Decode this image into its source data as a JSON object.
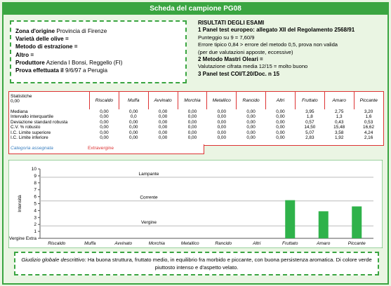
{
  "header": {
    "title": "Scheda del campione PG08"
  },
  "info": [
    {
      "label": "Zona d'origine",
      "value": "Provincia di Firenze"
    },
    {
      "label": "Varietà delle olive =",
      "value": ""
    },
    {
      "label": "Metodo di estrazione =",
      "value": ""
    },
    {
      "label": "Altro =",
      "value": ""
    },
    {
      "label": "Produttore",
      "value": "Azienda I Bonsi, Reggello (FI)"
    },
    {
      "label": "Prova effettuata il",
      "value": "9/6/97 a Perugia"
    }
  ],
  "results": {
    "title": "RISULTATI DEGLI ESAMI",
    "sections": [
      {
        "heading": "1 Panel test europeo: allegato XII del Regolamento 2568/91",
        "lines": [
          "Punteggio su 9 = 7,60/9",
          "Errore tipico 0,84 > errore del metodo 0,5, prova non valida",
          "(per due valutazioni apposte, eccessive)"
        ]
      },
      {
        "heading": "2 Metodo Mastri Oleari =",
        "lines": [
          "Valutazione cifrata media 12/15 = molto buono"
        ]
      },
      {
        "heading": "3 Panel test COI/T.20/Doc. n 15",
        "lines": []
      }
    ]
  },
  "table": {
    "corner": [
      "Statistiche",
      "0,00"
    ],
    "columns": [
      "Riscaldo",
      "Muffa",
      "Avvinato",
      "Morchia",
      "Metallico",
      "Rancido",
      "Altri",
      "Fruttato",
      "Amaro",
      "Piccante"
    ],
    "rows": [
      {
        "label": "Mediana",
        "cells": [
          "0,00",
          "0,00",
          "0,00",
          "0,00",
          "0,00",
          "0,00",
          "0,00",
          "3,95",
          "2,75",
          "3,20"
        ]
      },
      {
        "label": "Intervallo interquartile",
        "cells": [
          "0,00",
          "0,0",
          "0,00",
          "0,00",
          "0,00",
          "0,00",
          "0,00",
          "1,8",
          "1,3",
          "1,6"
        ]
      },
      {
        "label": "Deviazione standard robusta",
        "cells": [
          "0,00",
          "0,00",
          "0,00",
          "0,00",
          "0,00",
          "0,00",
          "0,00",
          "0,57",
          "0,43",
          "0,53"
        ]
      },
      {
        "label": "C.V. % robusto",
        "cells": [
          "0,00",
          "0,00",
          "0,00",
          "0,00",
          "0,00",
          "0,00",
          "0,00",
          "14,50",
          "15,48",
          "16,62"
        ]
      },
      {
        "label": "I.C. Limite superiore",
        "cells": [
          "0,00",
          "0,00",
          "0,00",
          "0,00",
          "0,00",
          "0,00",
          "0,00",
          "5,07",
          "3,58",
          "4,24"
        ]
      },
      {
        "label": "I.C. Limite inferiore",
        "cells": [
          "0,00",
          "0,00",
          "0,00",
          "0,00",
          "0,00",
          "0,00",
          "0,00",
          "2,83",
          "1,92",
          "2,16"
        ]
      }
    ],
    "category_label": "Categoria assegnata",
    "category": "Extravergine"
  },
  "chart_data": {
    "type": "bar",
    "ylabel": "Intensità",
    "categories": [
      "Riscaldo",
      "Muffa",
      "Avvinato",
      "Morchia",
      "Metallico",
      "Rancido",
      "Altri",
      "Fruttato",
      "Amaro",
      "Piccante"
    ],
    "values": [
      0,
      0,
      0,
      0,
      0,
      0,
      0,
      5.5,
      3.9,
      4.6
    ],
    "color": "#2fb24a",
    "ylim": [
      0,
      10
    ],
    "yticks": [
      {
        "value": 0,
        "label": "Vergine Extra"
      },
      1,
      2,
      3,
      4,
      5,
      6,
      7,
      8,
      9,
      10
    ],
    "annotations": [
      {
        "text": "Lampante",
        "value": 9.2
      },
      {
        "text": "Corrente",
        "value": 5.8
      },
      {
        "text": "Vergine",
        "value": 2.2
      }
    ]
  },
  "footer": {
    "label": "Giudizio globale descrittivo:",
    "text": "Ha buona struttura, fruttato medio, in equilibrio fra morbido e piccante, con buona persistenza aromatica. Di colore verde piuttosto intenso e d'aspetto velato."
  }
}
